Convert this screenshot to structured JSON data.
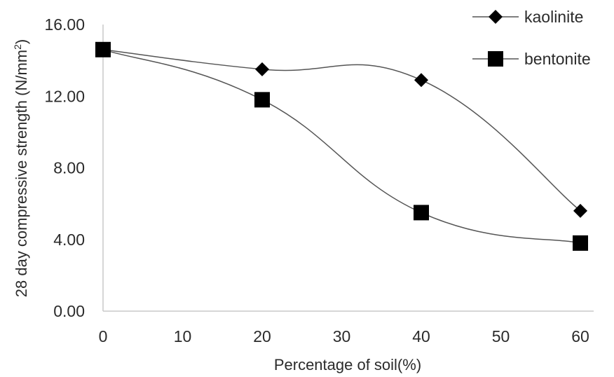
{
  "chart_data": {
    "type": "line",
    "smooth": true,
    "xlabel": "Percentage of soil(%)",
    "ylabel": "28 day compressive strength (N/mm²)",
    "ylabel_parts": {
      "main": "28 day compressive strength (N/mm",
      "sup": "2",
      "end": ")"
    },
    "x_ticks": [
      0,
      10,
      20,
      30,
      40,
      50,
      60
    ],
    "x_tick_labels": [
      "0",
      "10",
      "20",
      "30",
      "40",
      "50",
      "60"
    ],
    "y_ticks": [
      0,
      4,
      8,
      12,
      16
    ],
    "y_tick_labels": [
      "0.00",
      "4.00",
      "8.00",
      "12.00",
      "16.00"
    ],
    "xlim": [
      0,
      60
    ],
    "ylim": [
      0,
      16
    ],
    "grid": false,
    "legend_position": "top-right",
    "series": [
      {
        "name": "kaolinite",
        "marker": "diamond",
        "x": [
          0,
          20,
          40,
          60
        ],
        "y": [
          14.6,
          13.5,
          12.9,
          5.6
        ]
      },
      {
        "name": "bentonite",
        "marker": "square",
        "x": [
          0,
          20,
          40,
          60
        ],
        "y": [
          14.6,
          11.8,
          5.5,
          3.8
        ]
      }
    ],
    "colors": {
      "line": "#555555",
      "marker": "#000000",
      "axis": "#c8c8c8",
      "text": "#2b2b2b"
    }
  }
}
